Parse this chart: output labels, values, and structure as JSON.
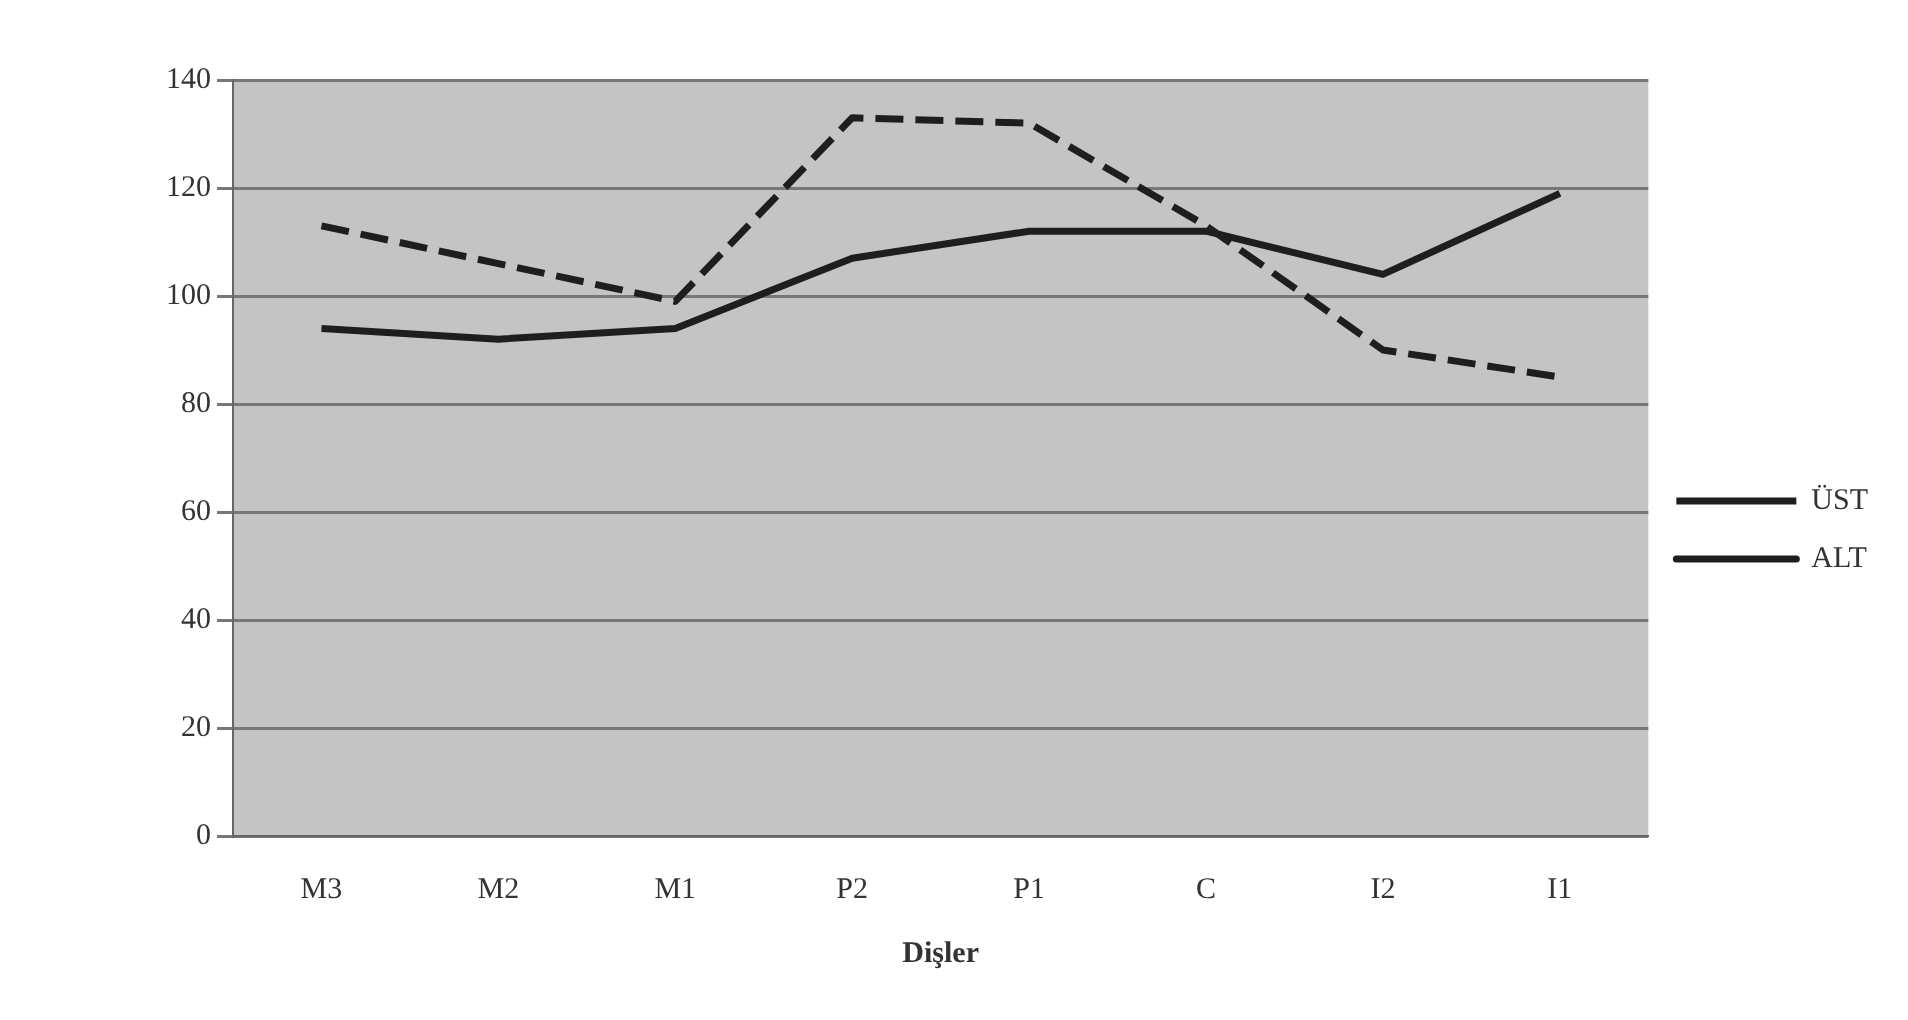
{
  "chart_data": {
    "type": "line",
    "xlabel": "Dişler",
    "categories": [
      "M3",
      "M2",
      "M1",
      "P2",
      "P1",
      "C",
      "I2",
      "I1"
    ],
    "series": [
      {
        "name": "ÜST",
        "color": "#1e1e1e",
        "line_style": "dashed",
        "values": [
          113,
          106,
          99,
          133,
          132,
          113,
          90,
          85
        ]
      },
      {
        "name": "ALT",
        "color": "#1e1e1e",
        "line_style": "solid",
        "values": [
          94,
          92,
          94,
          107,
          112,
          112,
          104,
          119
        ]
      }
    ],
    "ylim": [
      0,
      140
    ],
    "yticks": [
      0,
      20,
      40,
      60,
      80,
      100,
      120,
      140
    ],
    "grid": "y",
    "legend": "right",
    "marker": "none"
  }
}
